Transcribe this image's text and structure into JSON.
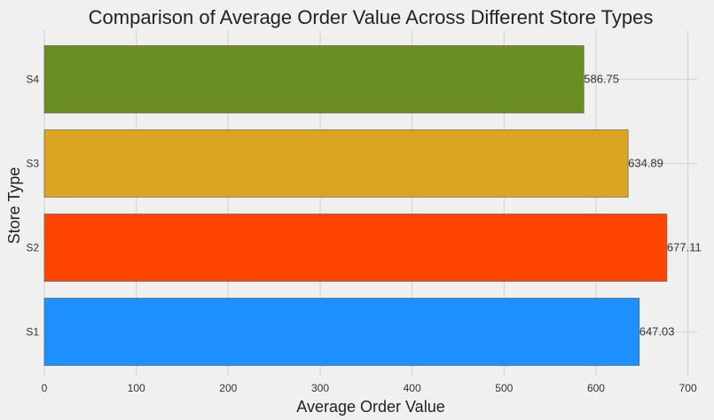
{
  "chart_data": {
    "type": "bar",
    "orientation": "horizontal",
    "title": "Comparison of Average Order Value Across Different Store Types",
    "xlabel": "Average Order Value",
    "ylabel": "Store Type",
    "categories": [
      "S1",
      "S2",
      "S3",
      "S4"
    ],
    "values": [
      647.03,
      677.11,
      634.89,
      586.75
    ],
    "value_labels": [
      "647.03",
      "677.11",
      "634.89",
      "586.75"
    ],
    "colors": [
      "#1e90ff",
      "#ff4500",
      "#daa520",
      "#6b8e23"
    ],
    "xlim": [
      0,
      710
    ],
    "xticks": [
      0,
      100,
      200,
      300,
      400,
      500,
      600,
      700
    ],
    "grid": true,
    "background": "#f0f0f0"
  }
}
